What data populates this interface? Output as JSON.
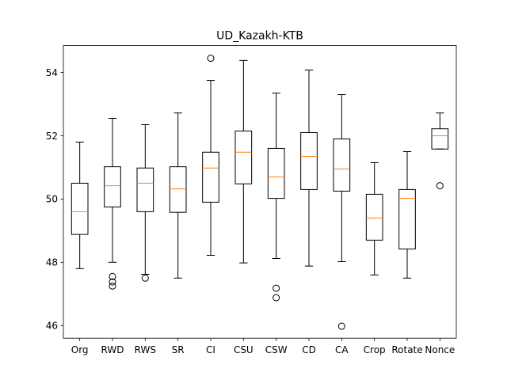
{
  "chart_data": {
    "type": "boxplot",
    "title": "UD_Kazakh-KTB",
    "xlabel": "",
    "ylabel": "",
    "ylim": [
      45.6,
      54.85
    ],
    "yticks": [
      46,
      48,
      50,
      52,
      54
    ],
    "colors": {
      "box": "#000000",
      "median": "#ff7f0e",
      "frame": "#000000",
      "background": "#ffffff"
    },
    "categories": [
      "Org",
      "RWD",
      "RWS",
      "SR",
      "CI",
      "CSU",
      "CSW",
      "CD",
      "CA",
      "Crop",
      "Rotate",
      "Nonce"
    ],
    "boxes": [
      {
        "label": "Org",
        "whislo": 47.8,
        "q1": 48.88,
        "med": 49.6,
        "q3": 50.5,
        "whishi": 51.8,
        "fliers": []
      },
      {
        "label": "RWD",
        "whislo": 48.0,
        "q1": 49.75,
        "med": 50.42,
        "q3": 51.02,
        "whishi": 52.55,
        "fliers": [
          47.55,
          47.38,
          47.25
        ]
      },
      {
        "label": "RWS",
        "whislo": 47.62,
        "q1": 49.6,
        "med": 50.5,
        "q3": 50.98,
        "whishi": 52.35,
        "fliers": [
          47.5
        ]
      },
      {
        "label": "SR",
        "whislo": 47.5,
        "q1": 49.58,
        "med": 50.32,
        "q3": 51.02,
        "whishi": 52.72,
        "fliers": []
      },
      {
        "label": "CI",
        "whislo": 48.22,
        "q1": 49.9,
        "med": 50.98,
        "q3": 51.48,
        "whishi": 53.75,
        "fliers": [
          54.45
        ]
      },
      {
        "label": "CSU",
        "whislo": 47.98,
        "q1": 50.48,
        "med": 51.48,
        "q3": 52.15,
        "whishi": 54.38,
        "fliers": []
      },
      {
        "label": "CSW",
        "whislo": 48.12,
        "q1": 50.02,
        "med": 50.7,
        "q3": 51.6,
        "whishi": 53.35,
        "fliers": [
          47.18,
          46.88
        ]
      },
      {
        "label": "CD",
        "whislo": 47.88,
        "q1": 50.3,
        "med": 51.35,
        "q3": 52.1,
        "whishi": 54.08,
        "fliers": []
      },
      {
        "label": "CA",
        "whislo": 48.02,
        "q1": 50.25,
        "med": 50.95,
        "q3": 51.9,
        "whishi": 53.3,
        "fliers": [
          45.98
        ]
      },
      {
        "label": "Crop",
        "whislo": 47.6,
        "q1": 48.7,
        "med": 49.4,
        "q3": 50.15,
        "whishi": 51.15,
        "fliers": []
      },
      {
        "label": "Rotate",
        "whislo": 47.5,
        "q1": 48.42,
        "med": 50.02,
        "q3": 50.3,
        "whishi": 51.5,
        "fliers": []
      },
      {
        "label": "Nonce",
        "whislo": 51.58,
        "q1": 51.58,
        "med": 52.0,
        "q3": 52.22,
        "whishi": 52.72,
        "fliers": [
          50.42
        ]
      }
    ]
  }
}
